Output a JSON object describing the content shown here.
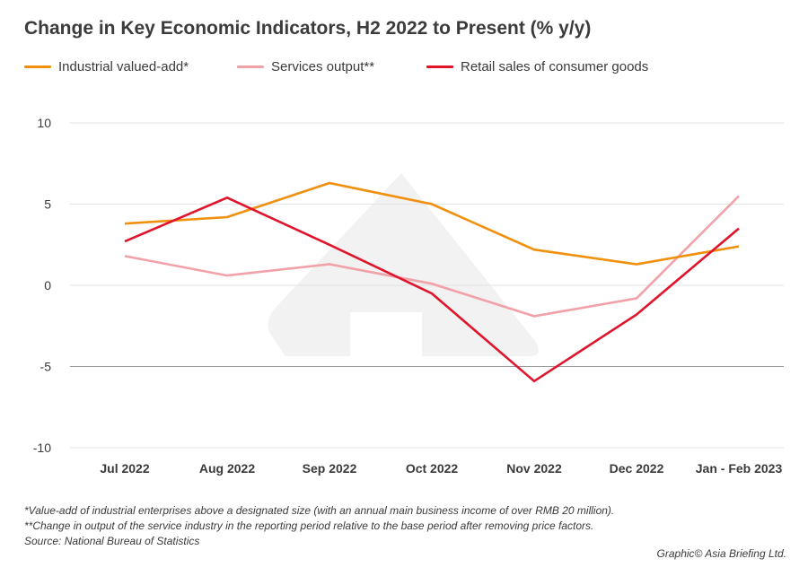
{
  "chart_data": {
    "type": "line",
    "title": "Change in Key Economic Indicators, H2 2022 to Present (% y/y)",
    "xlabel": "",
    "ylabel": "",
    "categories": [
      "Jul 2022",
      "Aug 2022",
      "Sep 2022",
      "Oct 2022",
      "Nov 2022",
      "Dec 2022",
      "Jan - Feb 2023"
    ],
    "ylim": [
      -10,
      10
    ],
    "yticks": [
      10,
      5,
      0,
      -5,
      -10
    ],
    "ytick_labels": [
      "10",
      "5",
      "0",
      "-5",
      "-10"
    ],
    "grid": true,
    "legend_position": "top-left",
    "series": [
      {
        "name": "Industrial valued-add*",
        "color": "#f0900e",
        "values": [
          3.8,
          4.2,
          6.3,
          5.0,
          2.2,
          1.3,
          2.4
        ]
      },
      {
        "name": "Services output**",
        "color": "#f2a1a8",
        "values": [
          1.8,
          0.6,
          1.3,
          0.1,
          -1.9,
          -0.8,
          5.5
        ]
      },
      {
        "name": "Retail sales of consumer goods",
        "color": "#e0142b",
        "values": [
          2.7,
          5.4,
          2.5,
          -0.5,
          -5.9,
          -1.8,
          3.5
        ]
      }
    ]
  },
  "footnotes": {
    "note1": "*Value-add of industrial enterprises above a designated size (with an annual main business income of over RMB 20 million).",
    "note2": "**Change in output of the service industry in the reporting period relative to the base period after removing price factors.",
    "source": "Source: National Bureau of Statistics"
  },
  "credit": "Graphic© Asia Briefing Ltd.",
  "colors": {
    "gridline": "#e3e3e3",
    "axis_line": "#999999",
    "watermark": "#f2f2f2",
    "text": "#3a3a3a"
  }
}
